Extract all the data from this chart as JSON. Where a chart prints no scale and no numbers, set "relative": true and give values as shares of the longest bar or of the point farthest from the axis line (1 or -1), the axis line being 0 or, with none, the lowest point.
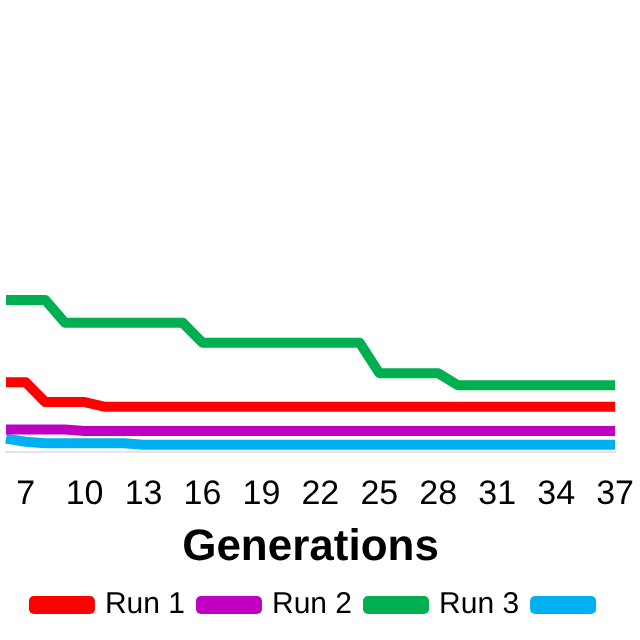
{
  "chart_data": {
    "type": "line",
    "relative": true,
    "xlabel": "Generations",
    "legend": "bottom",
    "marker": "none",
    "line_style": "solid",
    "categories": [
      null,
      "7",
      null,
      null,
      "10",
      null,
      null,
      "13",
      null,
      null,
      "16",
      null,
      null,
      "19",
      null,
      null,
      "22",
      null,
      null,
      "25",
      null,
      null,
      "28",
      null,
      null,
      "31",
      null,
      null,
      "34",
      null,
      null,
      "37"
    ],
    "series": [
      {
        "name": "Run 1",
        "color": "#ff0000",
        "values": [
          0.46,
          0.46,
          0.33,
          0.33,
          0.33,
          0.3,
          0.3,
          0.3,
          0.3,
          0.3,
          0.3,
          0.3,
          0.3,
          0.3,
          0.3,
          0.3,
          0.3,
          0.3,
          0.3,
          0.3,
          0.3,
          0.3,
          0.3,
          0.3,
          0.3,
          0.3,
          0.3,
          0.3,
          0.3,
          0.3,
          0.3,
          0.3
        ]
      },
      {
        "name": "Run 2",
        "color": "#c000c0",
        "values": [
          0.15,
          0.15,
          0.15,
          0.15,
          0.14,
          0.14,
          0.14,
          0.14,
          0.14,
          0.14,
          0.14,
          0.14,
          0.14,
          0.14,
          0.14,
          0.14,
          0.14,
          0.14,
          0.14,
          0.14,
          0.14,
          0.14,
          0.14,
          0.14,
          0.14,
          0.14,
          0.14,
          0.14,
          0.14,
          0.14,
          0.14,
          0.14
        ]
      },
      {
        "name": "Run 3",
        "color": "#00b050",
        "values": [
          1,
          1,
          1,
          0.85,
          0.85,
          0.85,
          0.85,
          0.85,
          0.85,
          0.85,
          0.72,
          0.72,
          0.72,
          0.72,
          0.72,
          0.72,
          0.72,
          0.72,
          0.72,
          0.52,
          0.52,
          0.52,
          0.52,
          0.44,
          0.44,
          0.44,
          0.44,
          0.44,
          0.44,
          0.44,
          0.44,
          0.44
        ]
      },
      {
        "color": "#00b0f0",
        "values": [
          0.09,
          0.07,
          0.06,
          0.06,
          0.06,
          0.06,
          0.06,
          0.05,
          0.05,
          0.05,
          0.05,
          0.05,
          0.05,
          0.05,
          0.05,
          0.05,
          0.05,
          0.05,
          0.05,
          0.05,
          0.05,
          0.05,
          0.05,
          0.05,
          0.05,
          0.05,
          0.05,
          0.05,
          0.05,
          0.05,
          0.05,
          0.05
        ]
      }
    ]
  }
}
